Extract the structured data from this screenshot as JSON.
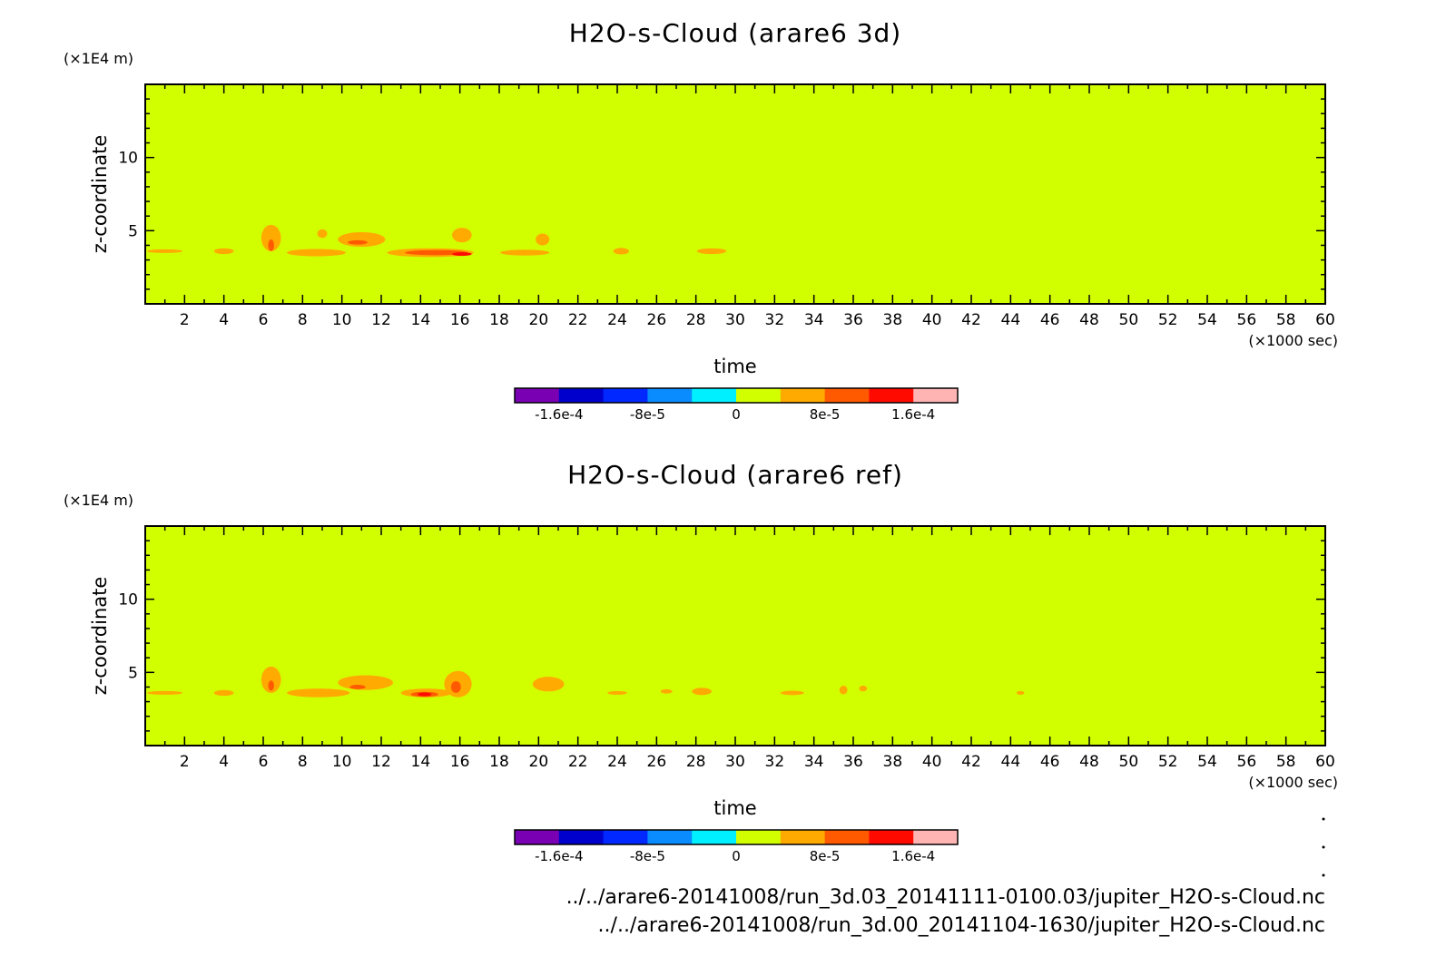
{
  "chart_data": [
    {
      "type": "heatmap",
      "title": "H2O-s-Cloud (arare6 3d)",
      "xlabel": "time",
      "ylabel": "z-coordinate",
      "x_unit": "(×1000 sec)",
      "y_unit": "(×1E4 m)",
      "xlim": [
        0,
        60
      ],
      "ylim": [
        0,
        15
      ],
      "x_ticks": [
        "2",
        "4",
        "6",
        "8",
        "10",
        "12",
        "14",
        "16",
        "18",
        "20",
        "22",
        "24",
        "26",
        "28",
        "30",
        "32",
        "34",
        "36",
        "38",
        "40",
        "42",
        "44",
        "46",
        "48",
        "50",
        "52",
        "54",
        "56",
        "58",
        "60"
      ],
      "y_ticks": [
        "5",
        "10"
      ],
      "background_level": "0 to 4e-5",
      "features": [
        {
          "x": 1.0,
          "z": 3.6,
          "w": 1.8,
          "h": 0.25,
          "level": 1
        },
        {
          "x": 4.0,
          "z": 3.6,
          "w": 1.0,
          "h": 0.4,
          "level": 1
        },
        {
          "x": 6.4,
          "z": 4.5,
          "w": 1.0,
          "h": 1.8,
          "level": 1
        },
        {
          "x": 6.4,
          "z": 4.0,
          "w": 0.3,
          "h": 0.8,
          "level": 2
        },
        {
          "x": 8.7,
          "z": 3.5,
          "w": 3.0,
          "h": 0.5,
          "level": 1
        },
        {
          "x": 11.0,
          "z": 4.4,
          "w": 2.4,
          "h": 1.0,
          "level": 1
        },
        {
          "x": 10.8,
          "z": 4.2,
          "w": 1.0,
          "h": 0.3,
          "level": 2
        },
        {
          "x": 9.0,
          "z": 4.8,
          "w": 0.5,
          "h": 0.6,
          "level": 1
        },
        {
          "x": 14.5,
          "z": 3.5,
          "w": 4.4,
          "h": 0.6,
          "level": 1
        },
        {
          "x": 14.8,
          "z": 3.5,
          "w": 3.2,
          "h": 0.35,
          "level": 2
        },
        {
          "x": 16.1,
          "z": 3.4,
          "w": 1.0,
          "h": 0.2,
          "level": 3
        },
        {
          "x": 16.1,
          "z": 4.7,
          "w": 1.0,
          "h": 1.0,
          "level": 1
        },
        {
          "x": 19.3,
          "z": 3.5,
          "w": 2.5,
          "h": 0.4,
          "level": 1
        },
        {
          "x": 20.2,
          "z": 4.4,
          "w": 0.7,
          "h": 0.8,
          "level": 1
        },
        {
          "x": 24.2,
          "z": 3.6,
          "w": 0.8,
          "h": 0.45,
          "level": 1
        },
        {
          "x": 28.8,
          "z": 3.6,
          "w": 1.5,
          "h": 0.4,
          "level": 1
        }
      ]
    },
    {
      "type": "heatmap",
      "title": "H2O-s-Cloud (arare6 ref)",
      "xlabel": "time",
      "ylabel": "z-coordinate",
      "x_unit": "(×1000 sec)",
      "y_unit": "(×1E4 m)",
      "xlim": [
        0,
        60
      ],
      "ylim": [
        0,
        15
      ],
      "x_ticks": [
        "2",
        "4",
        "6",
        "8",
        "10",
        "12",
        "14",
        "16",
        "18",
        "20",
        "22",
        "24",
        "26",
        "28",
        "30",
        "32",
        "34",
        "36",
        "38",
        "40",
        "42",
        "44",
        "46",
        "48",
        "50",
        "52",
        "54",
        "56",
        "58",
        "60"
      ],
      "y_ticks": [
        "5",
        "10"
      ],
      "background_level": "0 to 4e-5",
      "features": [
        {
          "x": 1.0,
          "z": 3.6,
          "w": 1.8,
          "h": 0.25,
          "level": 1
        },
        {
          "x": 4.0,
          "z": 3.6,
          "w": 1.0,
          "h": 0.4,
          "level": 1
        },
        {
          "x": 6.4,
          "z": 4.5,
          "w": 1.0,
          "h": 1.8,
          "level": 1
        },
        {
          "x": 6.4,
          "z": 4.1,
          "w": 0.3,
          "h": 0.7,
          "level": 2
        },
        {
          "x": 8.8,
          "z": 3.6,
          "w": 3.2,
          "h": 0.6,
          "level": 1
        },
        {
          "x": 11.2,
          "z": 4.3,
          "w": 2.8,
          "h": 1.0,
          "level": 1
        },
        {
          "x": 10.8,
          "z": 4.0,
          "w": 0.8,
          "h": 0.3,
          "level": 2
        },
        {
          "x": 14.3,
          "z": 3.6,
          "w": 2.6,
          "h": 0.6,
          "level": 1
        },
        {
          "x": 14.2,
          "z": 3.5,
          "w": 1.4,
          "h": 0.35,
          "level": 2
        },
        {
          "x": 14.2,
          "z": 3.5,
          "w": 0.7,
          "h": 0.15,
          "level": 3
        },
        {
          "x": 15.9,
          "z": 4.2,
          "w": 1.4,
          "h": 1.8,
          "level": 1
        },
        {
          "x": 15.8,
          "z": 4.0,
          "w": 0.5,
          "h": 0.8,
          "level": 2
        },
        {
          "x": 20.5,
          "z": 4.2,
          "w": 1.6,
          "h": 1.0,
          "level": 1
        },
        {
          "x": 24.0,
          "z": 3.6,
          "w": 1.0,
          "h": 0.2,
          "level": 1
        },
        {
          "x": 26.5,
          "z": 3.7,
          "w": 0.6,
          "h": 0.3,
          "level": 1
        },
        {
          "x": 28.3,
          "z": 3.7,
          "w": 1.0,
          "h": 0.5,
          "level": 1
        },
        {
          "x": 32.9,
          "z": 3.6,
          "w": 1.2,
          "h": 0.3,
          "level": 1
        },
        {
          "x": 35.5,
          "z": 3.8,
          "w": 0.4,
          "h": 0.6,
          "level": 1
        },
        {
          "x": 36.5,
          "z": 3.9,
          "w": 0.4,
          "h": 0.4,
          "level": 1
        },
        {
          "x": 44.5,
          "z": 3.6,
          "w": 0.4,
          "h": 0.15,
          "level": 1
        }
      ]
    }
  ],
  "colorbar": {
    "colors": [
      "#7a00b4",
      "#0000cd",
      "#0028ff",
      "#0a8cff",
      "#00f0ff",
      "#d2ff00",
      "#ffaa00",
      "#ff5a00",
      "#ff0a00",
      "#ffb4b4"
    ],
    "tick_labels": [
      "-1.6e-4",
      "-8e-5",
      "0",
      "8e-5",
      "1.6e-4"
    ],
    "tick_values": [
      -0.00016,
      -8e-05,
      0,
      8e-05,
      0.00016
    ]
  },
  "colors": {
    "background_fill": "#d2ff00",
    "contour_levels": [
      "#ffaa00",
      "#ff5a00",
      "#ff0a00",
      "#ffb4b4"
    ]
  },
  "footer": {
    "file1": "../../arare6-20141008/run_3d.03_20141111-0100.03/jupiter_H2O-s-Cloud.nc",
    "file2": "../../arare6-20141008/run_3d.00_20141104-1630/jupiter_H2O-s-Cloud.nc"
  }
}
